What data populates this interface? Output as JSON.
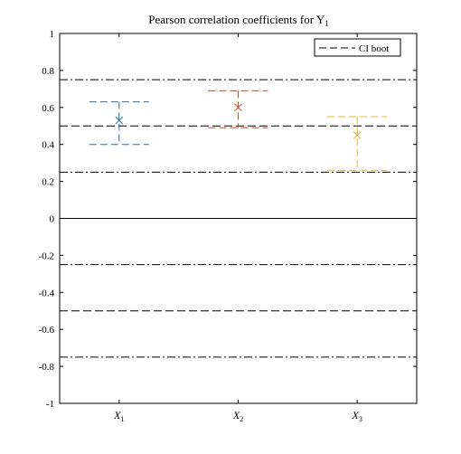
{
  "chart_data": {
    "type": "scatter",
    "title": "Pearson correlation coefficients for Y",
    "title_subscript": "1",
    "categories": [
      {
        "label": "X",
        "sub": "1"
      },
      {
        "label": "X",
        "sub": "2"
      },
      {
        "label": "X",
        "sub": "3"
      }
    ],
    "series": [
      {
        "values": [
          0.53,
          0.6,
          0.45
        ],
        "ci_low": [
          0.4,
          0.49,
          0.26
        ],
        "ci_high": [
          0.63,
          0.69,
          0.55
        ]
      }
    ],
    "series_colors": [
      "#2a6fa8",
      "#c0501e",
      "#e0b42a"
    ],
    "ylim": [
      -1,
      1
    ],
    "yticks": [
      -1,
      -0.8,
      -0.6,
      -0.4,
      -0.2,
      0,
      0.2,
      0.4,
      0.6,
      0.8,
      1
    ],
    "ytick_labels": [
      "-1",
      "-0.8",
      "-0.6",
      "-0.4",
      "-0.2",
      "0",
      "0.2",
      "0.4",
      "0.6",
      "0.8",
      "1"
    ],
    "reference_lines": [
      {
        "y": 0.75,
        "style": "dashdot"
      },
      {
        "y": 0.5,
        "style": "dashed"
      },
      {
        "y": 0.25,
        "style": "dashdot"
      },
      {
        "y": 0,
        "style": "solid"
      },
      {
        "y": -0.25,
        "style": "dashdot"
      },
      {
        "y": -0.5,
        "style": "dashed"
      },
      {
        "y": -0.75,
        "style": "dashdot"
      }
    ],
    "legend": {
      "label": "CI boot",
      "position": "top-right"
    },
    "grid": false
  }
}
